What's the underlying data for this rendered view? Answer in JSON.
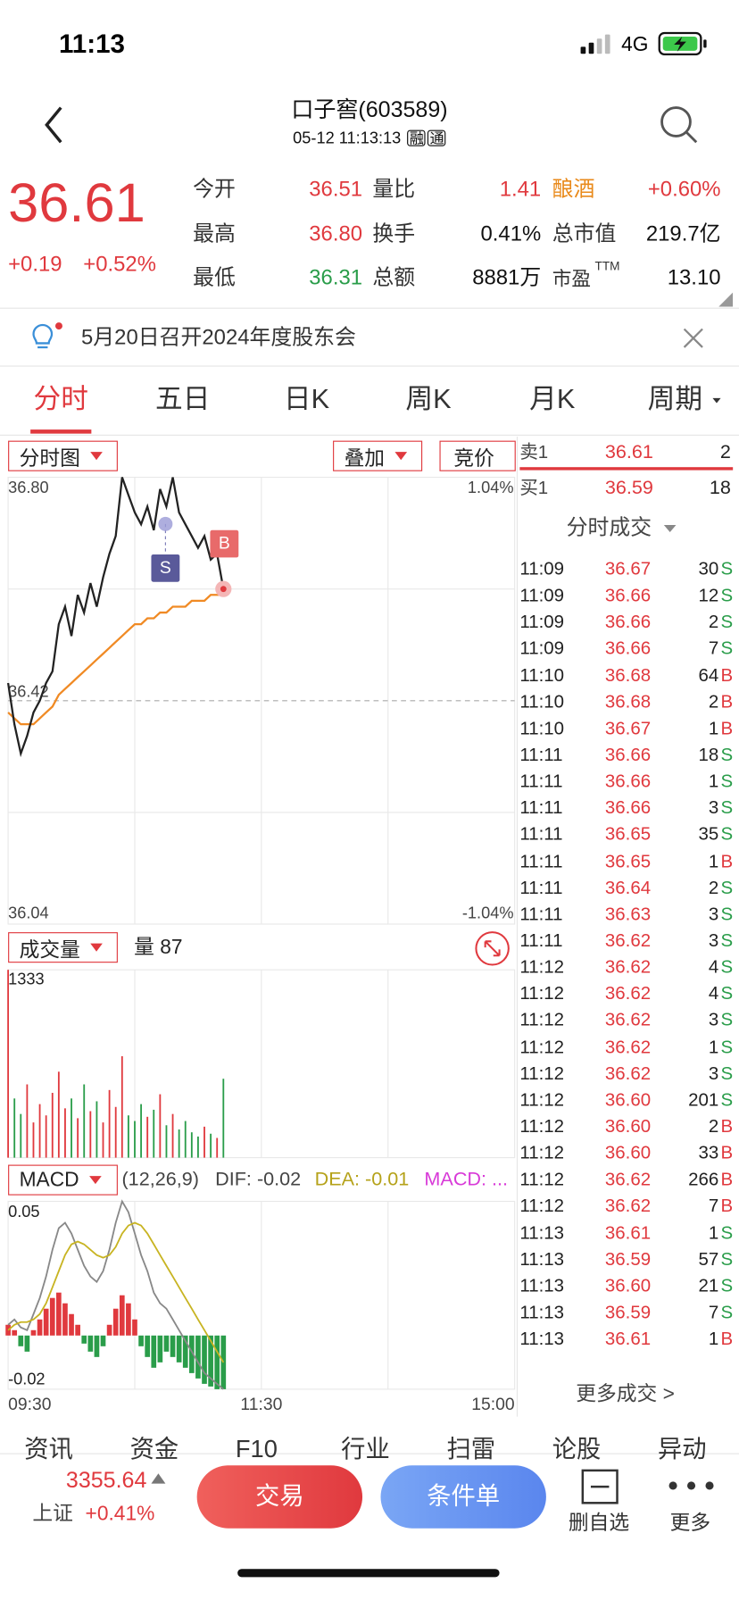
{
  "status": {
    "time": "11:13",
    "network": "4G"
  },
  "header": {
    "title": "口子窖(603589)",
    "subtitle": "05-12 11:13:13",
    "badges": [
      "融",
      "通"
    ]
  },
  "quote": {
    "price": "36.61",
    "change": "+0.19",
    "change_pct": "+0.52%",
    "stats": [
      [
        {
          "label": "今开",
          "value": "36.51",
          "color": "#e0393e"
        },
        {
          "label": "量比",
          "value": "1.41",
          "color": "#e0393e"
        },
        {
          "label": "酿酒",
          "value": "+0.60%",
          "color": "#e0393e",
          "label_color": "#e98a1b"
        }
      ],
      [
        {
          "label": "最高",
          "value": "36.80",
          "color": "#e0393e"
        },
        {
          "label": "换手",
          "value": "0.41%",
          "color": "#111111"
        },
        {
          "label": "总市值",
          "value": "219.7亿",
          "color": "#111111"
        }
      ],
      [
        {
          "label": "最低",
          "value": "36.31",
          "color": "#2a9d4a"
        },
        {
          "label": "总额",
          "value": "8881万",
          "color": "#111111"
        },
        {
          "label": "市盈",
          "sup": "TTM",
          "value": "13.10",
          "color": "#111111"
        }
      ]
    ]
  },
  "notice": "5月20日召开2024年度股东会",
  "tabs": [
    "分时",
    "五日",
    "日K",
    "周K",
    "月K",
    "周期"
  ],
  "controls": {
    "chart_mode": "分时图",
    "overlay": "叠加",
    "auction": "竞价",
    "volume_mode": "成交量",
    "volume_now": "量 87",
    "macd_mode": "MACD",
    "macd_params": "(12,26,9)",
    "dif": "DIF: -0.02",
    "dea": "DEA: -0.01",
    "macd": "MACD: ..."
  },
  "intraday": {
    "type": "line",
    "ylim": [
      36.04,
      36.8
    ],
    "yticks": [
      {
        "value": 36.8,
        "label": "36.80"
      },
      {
        "value": 36.42,
        "label": "36.42"
      },
      {
        "value": 36.04,
        "label": "36.04"
      }
    ],
    "y2lim": [
      -1.04,
      1.04
    ],
    "y2ticks": [
      {
        "value": 1.04,
        "label": "1.04%"
      },
      {
        "value": -1.04,
        "label": "-1.04%"
      }
    ],
    "xticks": [
      "09:30",
      "11:30",
      "15:00"
    ],
    "annotations": [
      "S",
      "B"
    ],
    "series": [
      {
        "color": "#222222",
        "values": [
          36.45,
          36.38,
          36.33,
          36.36,
          36.4,
          36.42,
          36.45,
          36.47,
          36.55,
          36.58,
          36.53,
          36.6,
          36.57,
          36.62,
          36.58,
          36.63,
          36.67,
          36.7,
          36.8,
          36.77,
          36.74,
          36.72,
          36.75,
          36.71,
          36.78,
          36.75,
          36.8,
          36.74,
          36.72,
          36.7,
          36.68,
          36.7,
          36.66,
          36.67,
          36.61
        ]
      },
      {
        "color": "#f08a24",
        "values": [
          36.4,
          36.39,
          36.38,
          36.38,
          36.38,
          36.39,
          36.4,
          36.41,
          36.43,
          36.44,
          36.45,
          36.46,
          36.47,
          36.48,
          36.49,
          36.5,
          36.51,
          36.52,
          36.53,
          36.54,
          36.55,
          36.55,
          36.56,
          36.56,
          36.57,
          36.57,
          36.58,
          36.58,
          36.58,
          36.59,
          36.59,
          36.59,
          36.6,
          36.6,
          36.6
        ]
      }
    ]
  },
  "volume": {
    "type": "bar",
    "ylim": [
      0,
      1333
    ],
    "yticks": [
      1333
    ],
    "values": [
      1333,
      420,
      310,
      520,
      250,
      380,
      300,
      460,
      610,
      350,
      420,
      280,
      520,
      330,
      400,
      250,
      480,
      360,
      720,
      300,
      260,
      380,
      290,
      340,
      450,
      230,
      310,
      200,
      260,
      180,
      150,
      220,
      170,
      140,
      560
    ]
  },
  "macd": {
    "type": "bar",
    "ylim": [
      -0.02,
      0.05
    ],
    "yticks": [
      0.05,
      -0.02
    ],
    "hist": [
      0.004,
      0.002,
      -0.004,
      -0.006,
      0.002,
      0.006,
      0.01,
      0.014,
      0.016,
      0.012,
      0.008,
      0.004,
      -0.003,
      -0.006,
      -0.008,
      -0.004,
      0.004,
      0.01,
      0.015,
      0.012,
      0.006,
      -0.004,
      -0.008,
      -0.012,
      -0.01,
      -0.006,
      -0.008,
      -0.01,
      -0.012,
      -0.014,
      -0.016,
      -0.018,
      -0.019,
      -0.02,
      -0.02
    ],
    "dif": [
      0.004,
      0.006,
      0.003,
      0.002,
      0.008,
      0.014,
      0.022,
      0.032,
      0.04,
      0.042,
      0.038,
      0.032,
      0.026,
      0.022,
      0.02,
      0.024,
      0.032,
      0.042,
      0.05,
      0.046,
      0.038,
      0.03,
      0.024,
      0.016,
      0.012,
      0.01,
      0.006,
      0.002,
      -0.002,
      -0.006,
      -0.01,
      -0.014,
      -0.016,
      -0.018,
      -0.02
    ],
    "dea": [
      0.002,
      0.004,
      0.005,
      0.005,
      0.006,
      0.008,
      0.012,
      0.018,
      0.024,
      0.03,
      0.034,
      0.035,
      0.034,
      0.032,
      0.03,
      0.029,
      0.03,
      0.033,
      0.038,
      0.041,
      0.042,
      0.041,
      0.038,
      0.034,
      0.03,
      0.026,
      0.022,
      0.018,
      0.014,
      0.01,
      0.006,
      0.002,
      -0.002,
      -0.006,
      -0.01
    ]
  },
  "order_book": [
    {
      "side": "卖1",
      "price": "36.61",
      "volume": "2"
    },
    {
      "side": "买1",
      "price": "36.59",
      "volume": "18"
    }
  ],
  "trades_title": "分时成交",
  "trades": [
    [
      "11:09",
      "36.67",
      "30",
      "S"
    ],
    [
      "11:09",
      "36.66",
      "12",
      "S"
    ],
    [
      "11:09",
      "36.66",
      "2",
      "S"
    ],
    [
      "11:09",
      "36.66",
      "7",
      "S"
    ],
    [
      "11:10",
      "36.68",
      "64",
      "B"
    ],
    [
      "11:10",
      "36.68",
      "2",
      "B"
    ],
    [
      "11:10",
      "36.67",
      "1",
      "B"
    ],
    [
      "11:11",
      "36.66",
      "18",
      "S"
    ],
    [
      "11:11",
      "36.66",
      "1",
      "S"
    ],
    [
      "11:11",
      "36.66",
      "3",
      "S"
    ],
    [
      "11:11",
      "36.65",
      "35",
      "S"
    ],
    [
      "11:11",
      "36.65",
      "1",
      "B"
    ],
    [
      "11:11",
      "36.64",
      "2",
      "S"
    ],
    [
      "11:11",
      "36.63",
      "3",
      "S"
    ],
    [
      "11:11",
      "36.62",
      "3",
      "S"
    ],
    [
      "11:12",
      "36.62",
      "4",
      "S"
    ],
    [
      "11:12",
      "36.62",
      "4",
      "S"
    ],
    [
      "11:12",
      "36.62",
      "3",
      "S"
    ],
    [
      "11:12",
      "36.62",
      "1",
      "S"
    ],
    [
      "11:12",
      "36.62",
      "3",
      "S"
    ],
    [
      "11:12",
      "36.60",
      "201",
      "S"
    ],
    [
      "11:12",
      "36.60",
      "2",
      "B"
    ],
    [
      "11:12",
      "36.60",
      "33",
      "B"
    ],
    [
      "11:12",
      "36.62",
      "266",
      "B"
    ],
    [
      "11:12",
      "36.62",
      "7",
      "B"
    ],
    [
      "11:13",
      "36.61",
      "1",
      "S"
    ],
    [
      "11:13",
      "36.59",
      "57",
      "S"
    ],
    [
      "11:13",
      "36.60",
      "21",
      "S"
    ],
    [
      "11:13",
      "36.59",
      "7",
      "S"
    ],
    [
      "11:13",
      "36.61",
      "1",
      "B"
    ]
  ],
  "more_trades": "更多成交 >",
  "bottom_tabs": [
    "资讯",
    "资金",
    "F10",
    "行业",
    "扫雷",
    "论股",
    "异动"
  ],
  "footer": {
    "index_value": "3355.64",
    "index_name": "上证",
    "index_pct": "+0.41%",
    "trade": "交易",
    "conditional": "条件单",
    "remove": "删自选",
    "more": "更多"
  }
}
